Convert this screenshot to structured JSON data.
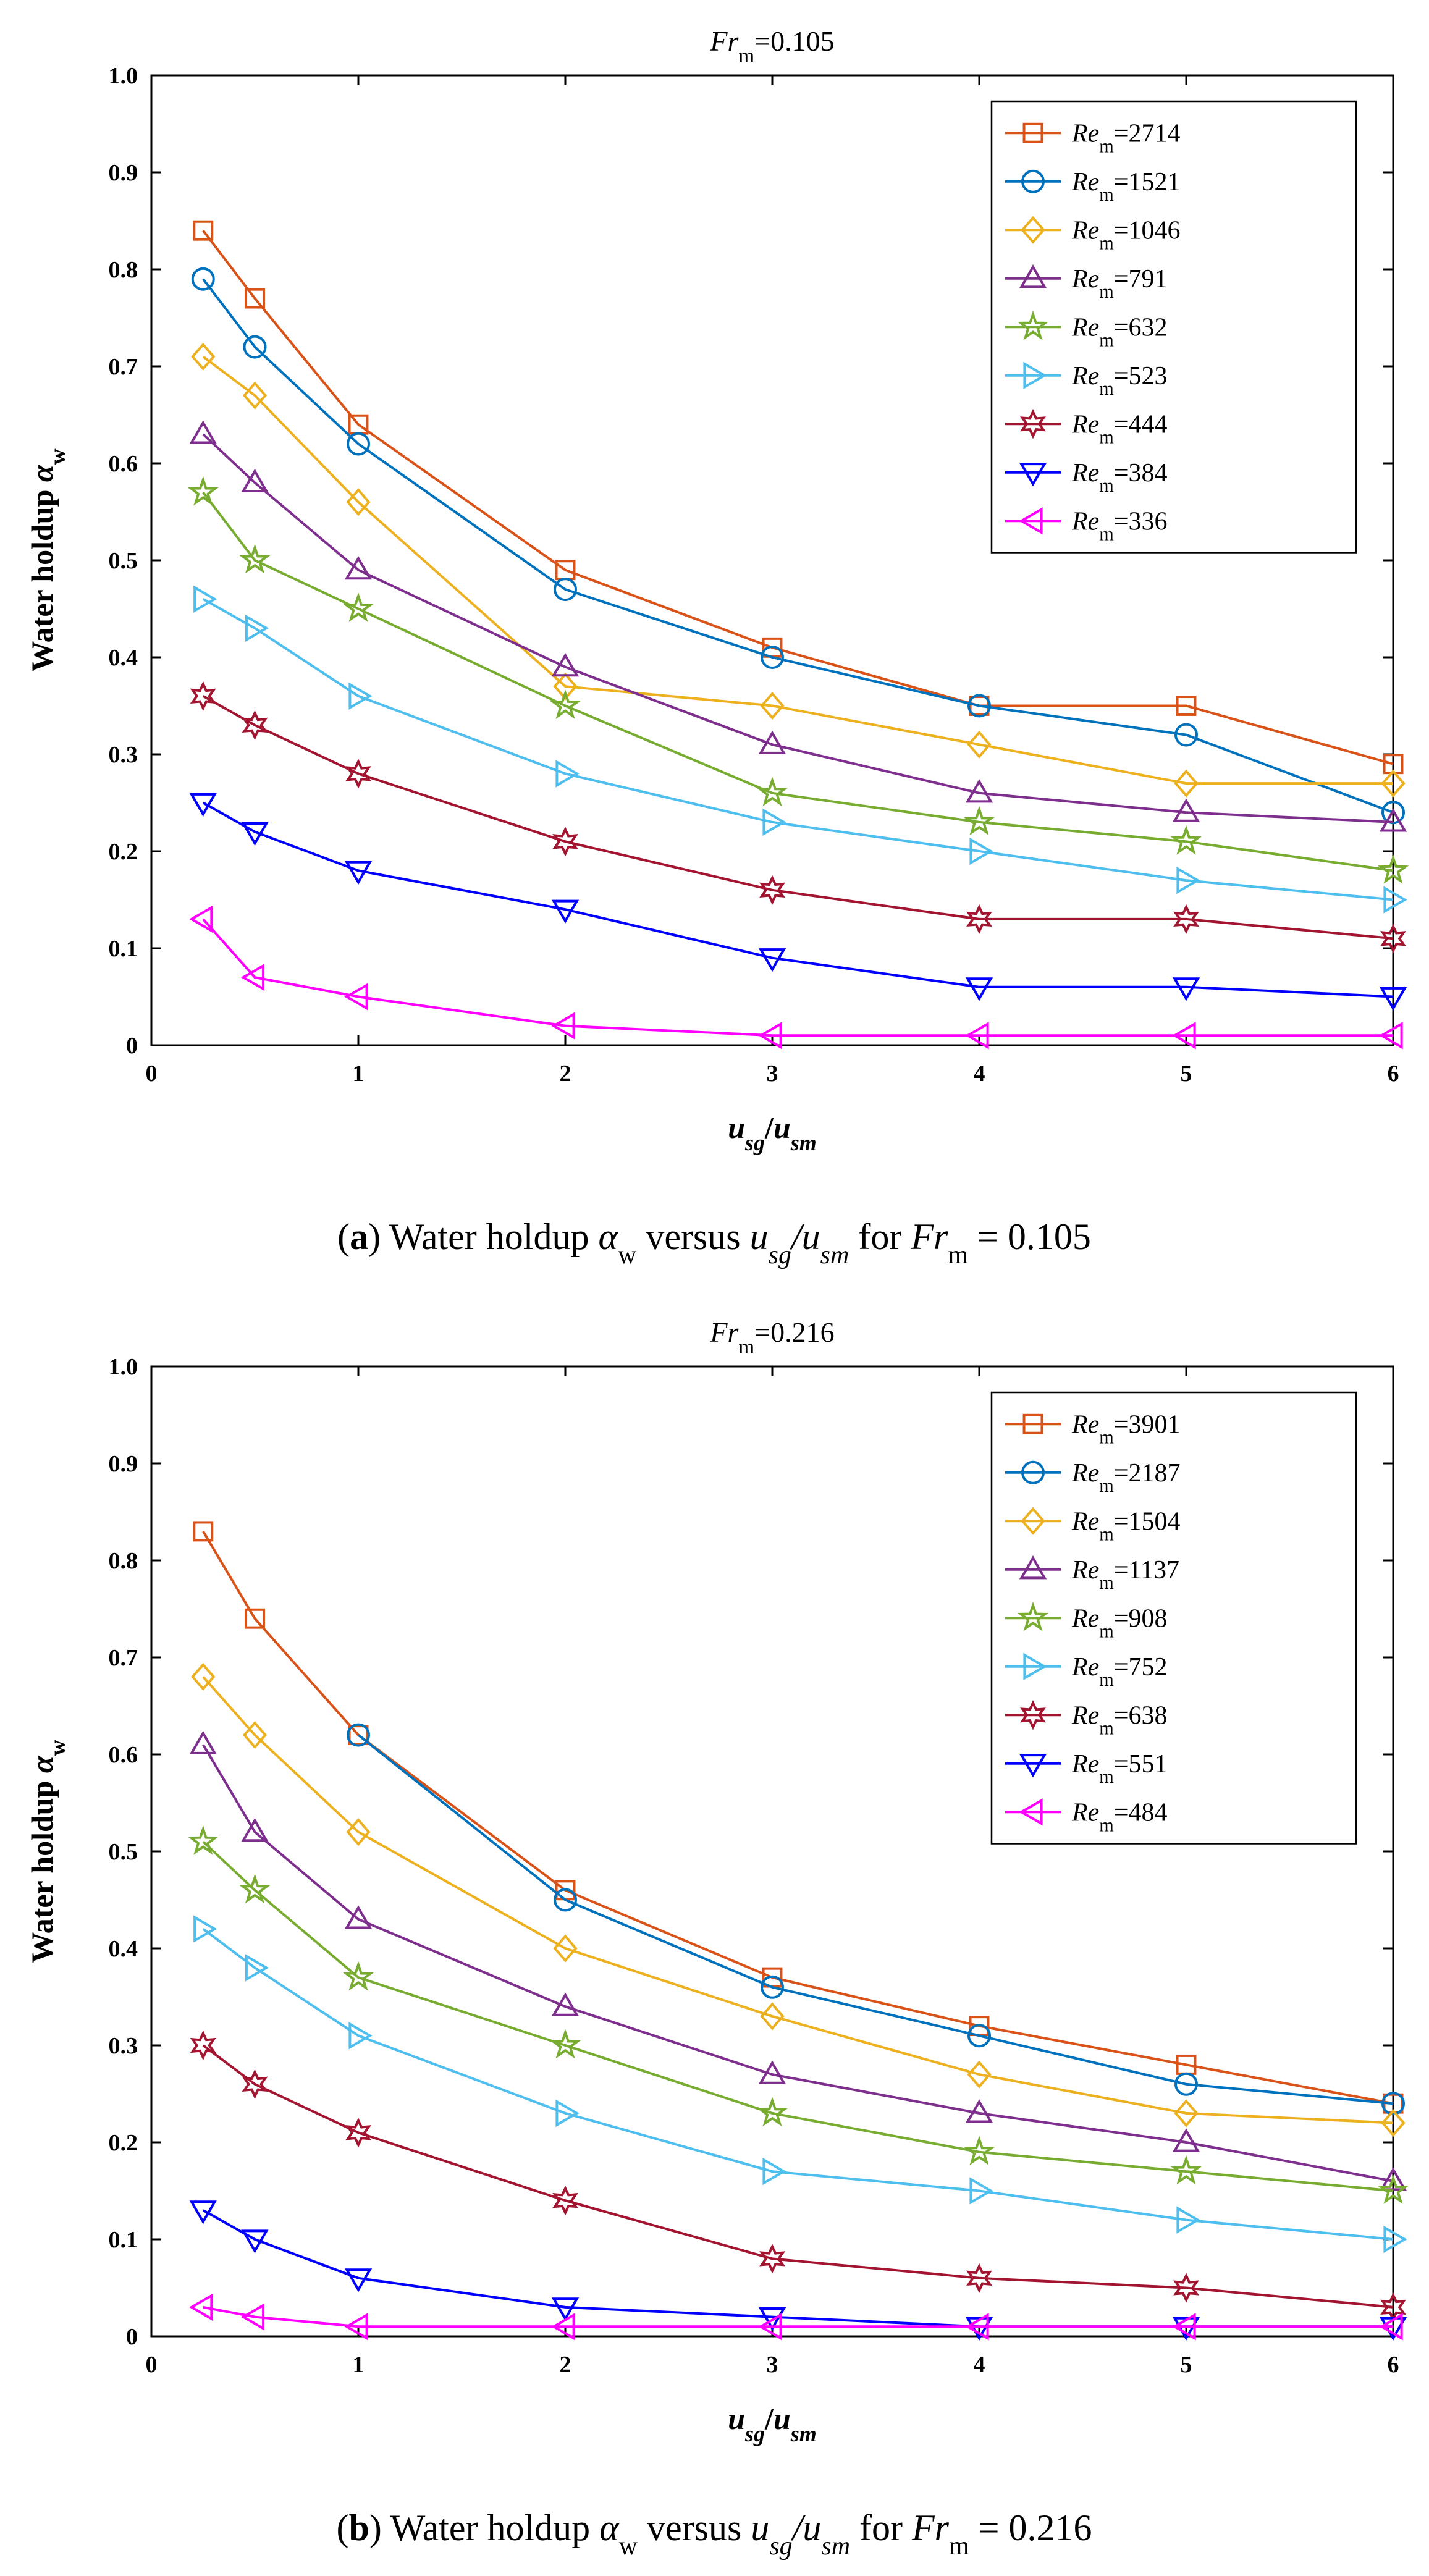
{
  "chart_data": [
    {
      "type": "line",
      "title": {
        "var": "Fr",
        "sub": "m",
        "rest": "=0.105"
      },
      "xlabel": {
        "u1": "u",
        "s1": "sg",
        "slash": "/",
        "u2": "u",
        "s2": "sm"
      },
      "ylabel": {
        "main": "Water holdup ",
        "sym": "α",
        "sub": "w"
      },
      "xlim": [
        0,
        6
      ],
      "ylim": [
        0,
        1.0
      ],
      "xticks": [
        "0",
        "1",
        "2",
        "3",
        "4",
        "5",
        "6"
      ],
      "yticks": [
        "0",
        "0.1",
        "0.2",
        "0.3",
        "0.4",
        "0.5",
        "0.6",
        "0.7",
        "0.8",
        "0.9",
        "1.0"
      ],
      "grid": false,
      "legend_position": "top-right",
      "x": [
        0.25,
        0.5,
        1,
        2,
        3,
        4,
        5,
        6
      ],
      "series": [
        {
          "name": {
            "var": "Re",
            "sub": "m",
            "rest": "=2714"
          },
          "color": "#d95319",
          "marker": "square",
          "values": [
            0.84,
            0.77,
            0.64,
            0.49,
            0.41,
            0.35,
            0.35,
            0.29
          ]
        },
        {
          "name": {
            "var": "Re",
            "sub": "m",
            "rest": "=1521"
          },
          "color": "#0072bd",
          "marker": "circle",
          "values": [
            0.79,
            0.72,
            0.62,
            0.47,
            0.4,
            0.35,
            0.32,
            0.24
          ]
        },
        {
          "name": {
            "var": "Re",
            "sub": "m",
            "rest": "=1046"
          },
          "color": "#edb120",
          "marker": "diamond",
          "values": [
            0.71,
            0.67,
            0.56,
            0.37,
            0.35,
            0.31,
            0.27,
            0.27
          ]
        },
        {
          "name": {
            "var": "Re",
            "sub": "m",
            "rest": "=791"
          },
          "color": "#7e2f8e",
          "marker": "triangle-up",
          "values": [
            0.63,
            0.58,
            0.49,
            0.39,
            0.31,
            0.26,
            0.24,
            0.23
          ]
        },
        {
          "name": {
            "var": "Re",
            "sub": "m",
            "rest": "=632"
          },
          "color": "#77ac30",
          "marker": "pentagram",
          "values": [
            0.57,
            0.5,
            0.45,
            0.35,
            0.26,
            0.23,
            0.21,
            0.18
          ]
        },
        {
          "name": {
            "var": "Re",
            "sub": "m",
            "rest": "=523"
          },
          "color": "#4dbeee",
          "marker": "triangle-right",
          "values": [
            0.46,
            0.43,
            0.36,
            0.28,
            0.23,
            0.2,
            0.17,
            0.15
          ]
        },
        {
          "name": {
            "var": "Re",
            "sub": "m",
            "rest": "=444"
          },
          "color": "#a2142f",
          "marker": "hexagram",
          "values": [
            0.36,
            0.33,
            0.28,
            0.21,
            0.16,
            0.13,
            0.13,
            0.11
          ]
        },
        {
          "name": {
            "var": "Re",
            "sub": "m",
            "rest": "=384"
          },
          "color": "#0000ff",
          "marker": "triangle-down",
          "values": [
            0.25,
            0.22,
            0.18,
            0.14,
            0.09,
            0.06,
            0.06,
            0.05
          ]
        },
        {
          "name": {
            "var": "Re",
            "sub": "m",
            "rest": "=336"
          },
          "color": "#ff00ff",
          "marker": "triangle-left",
          "values": [
            0.13,
            0.07,
            0.05,
            0.02,
            0.01,
            0.01,
            0.01,
            0.01
          ]
        }
      ],
      "caption": {
        "open": "(",
        "letter": "a",
        "close": ") Water holdup ",
        "alpha": "α",
        "w": "w",
        "versus": " versus ",
        "u1": "u",
        "s1": "sg",
        "slash": "/",
        "u2": "u",
        "s2": "sm",
        "for": " for ",
        "fr": "Fr",
        "m": "m",
        "value": " = 0.105"
      }
    },
    {
      "type": "line",
      "title": {
        "var": "Fr",
        "sub": "m",
        "rest": "=0.216"
      },
      "xlabel": {
        "u1": "u",
        "s1": "sg",
        "slash": "/",
        "u2": "u",
        "s2": "sm"
      },
      "ylabel": {
        "main": "Water holdup ",
        "sym": "α",
        "sub": "w"
      },
      "xlim": [
        0,
        6
      ],
      "ylim": [
        0,
        1.0
      ],
      "xticks": [
        "0",
        "1",
        "2",
        "3",
        "4",
        "5",
        "6"
      ],
      "yticks": [
        "0",
        "0.1",
        "0.2",
        "0.3",
        "0.4",
        "0.5",
        "0.6",
        "0.7",
        "0.8",
        "0.9",
        "1.0"
      ],
      "grid": false,
      "legend_position": "top-right",
      "x": [
        0.25,
        0.5,
        1,
        2,
        3,
        4,
        5,
        6
      ],
      "series": [
        {
          "name": {
            "var": "Re",
            "sub": "m",
            "rest": "=3901"
          },
          "color": "#d95319",
          "marker": "square",
          "values": [
            0.83,
            0.74,
            0.62,
            0.46,
            0.37,
            0.32,
            0.28,
            0.24
          ]
        },
        {
          "name": {
            "var": "Re",
            "sub": "m",
            "rest": "=2187"
          },
          "color": "#0072bd",
          "marker": "circle",
          "values": [
            null,
            null,
            0.62,
            0.45,
            0.36,
            0.31,
            0.26,
            0.24
          ]
        },
        {
          "name": {
            "var": "Re",
            "sub": "m",
            "rest": "=1504"
          },
          "color": "#edb120",
          "marker": "diamond",
          "values": [
            0.68,
            0.62,
            0.52,
            0.4,
            0.33,
            0.27,
            0.23,
            0.22
          ]
        },
        {
          "name": {
            "var": "Re",
            "sub": "m",
            "rest": "=1137"
          },
          "color": "#7e2f8e",
          "marker": "triangle-up",
          "values": [
            0.61,
            0.52,
            0.43,
            0.34,
            0.27,
            0.23,
            0.2,
            0.16
          ]
        },
        {
          "name": {
            "var": "Re",
            "sub": "m",
            "rest": "=908"
          },
          "color": "#77ac30",
          "marker": "pentagram",
          "values": [
            0.51,
            0.46,
            0.37,
            0.3,
            0.23,
            0.19,
            0.17,
            0.15
          ]
        },
        {
          "name": {
            "var": "Re",
            "sub": "m",
            "rest": "=752"
          },
          "color": "#4dbeee",
          "marker": "triangle-right",
          "values": [
            0.42,
            0.38,
            0.31,
            0.23,
            0.17,
            0.15,
            0.12,
            0.1
          ]
        },
        {
          "name": {
            "var": "Re",
            "sub": "m",
            "rest": "=638"
          },
          "color": "#a2142f",
          "marker": "hexagram",
          "values": [
            0.3,
            0.26,
            0.21,
            0.14,
            0.08,
            0.06,
            0.05,
            0.03
          ]
        },
        {
          "name": {
            "var": "Re",
            "sub": "m",
            "rest": "=551"
          },
          "color": "#0000ff",
          "marker": "triangle-down",
          "values": [
            0.13,
            0.1,
            0.06,
            0.03,
            0.02,
            0.01,
            0.01,
            0.01
          ]
        },
        {
          "name": {
            "var": "Re",
            "sub": "m",
            "rest": "=484"
          },
          "color": "#ff00ff",
          "marker": "triangle-left",
          "values": [
            0.03,
            0.02,
            0.01,
            0.01,
            0.01,
            0.01,
            0.01,
            0.01
          ]
        }
      ],
      "caption": {
        "open": "(",
        "letter": "b",
        "close": ") Water holdup ",
        "alpha": "α",
        "w": "w",
        "versus": " versus ",
        "u1": "u",
        "s1": "sg",
        "slash": "/",
        "u2": "u",
        "s2": "sm",
        "for": " for ",
        "fr": "Fr",
        "m": "m",
        "value": " = 0.216"
      }
    }
  ]
}
